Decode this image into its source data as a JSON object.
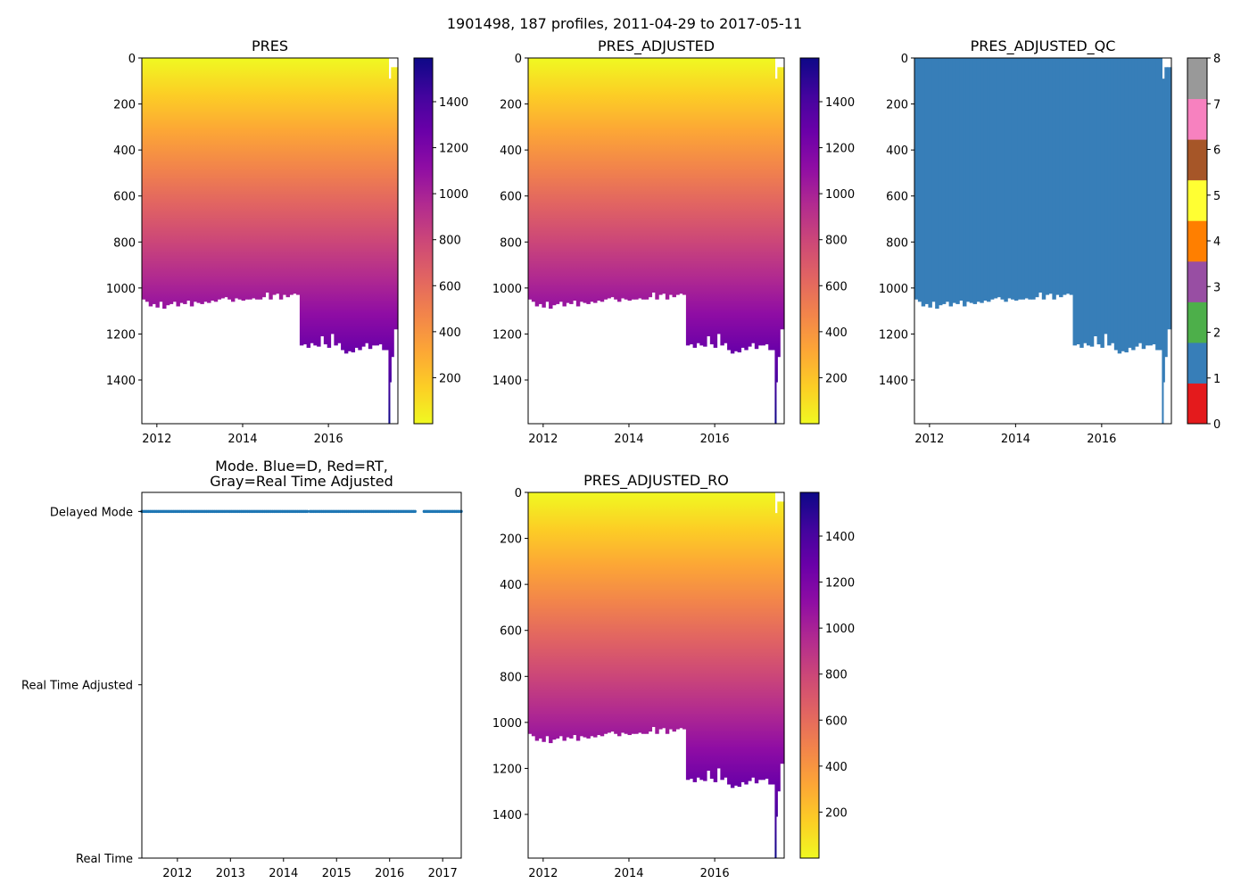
{
  "suptitle": "1901498, 187 profiles, 2011-04-29 to 2017-05-11",
  "profiles": {
    "start": 2011.65,
    "step": 0.08,
    "max_pres": [
      1050,
      1060,
      1080,
      1070,
      1085,
      1060,
      1090,
      1075,
      1070,
      1060,
      1080,
      1065,
      1070,
      1055,
      1080,
      1060,
      1065,
      1070,
      1060,
      1065,
      1055,
      1060,
      1050,
      1045,
      1040,
      1050,
      1060,
      1045,
      1050,
      1055,
      1050,
      1050,
      1045,
      1050,
      1050,
      1040,
      1020,
      1050,
      1030,
      1025,
      1050,
      1030,
      1040,
      1030,
      1025,
      1030,
      1250,
      1245,
      1260,
      1240,
      1250,
      1255,
      1210,
      1245,
      1260,
      1200,
      1250,
      1240,
      1270,
      1285,
      1275,
      1280,
      1260,
      1270,
      1255,
      1240,
      1265,
      1250,
      1250,
      1245,
      1270
    ],
    "tail": [
      [
        2017.33,
        2017.4,
        0,
        1270
      ],
      [
        2017.4,
        2017.43,
        90,
        1590
      ],
      [
        2017.43,
        2017.46,
        90,
        1410
      ],
      [
        2017.46,
        2017.52,
        40,
        1300
      ],
      [
        2017.52,
        2017.62,
        40,
        1180
      ]
    ]
  },
  "chart_data": [
    {
      "type": "heatmap",
      "title": "PRES",
      "xlim": [
        2011.65,
        2017.62
      ],
      "ylim": [
        1590,
        0
      ],
      "xticks": [
        "2012",
        "2014",
        "2016"
      ],
      "yticks": [
        "0",
        "200",
        "400",
        "600",
        "800",
        "1000",
        "1200",
        "1400"
      ],
      "colorbar": {
        "cmap": "plasma_r",
        "range": [
          0,
          1590
        ],
        "ticks": [
          "200",
          "400",
          "600",
          "800",
          "1000",
          "1200",
          "1400"
        ]
      }
    },
    {
      "type": "heatmap",
      "title": "PRES_ADJUSTED",
      "xlim": [
        2011.65,
        2017.62
      ],
      "ylim": [
        1590,
        0
      ],
      "xticks": [
        "2012",
        "2014",
        "2016"
      ],
      "yticks": [
        "0",
        "200",
        "400",
        "600",
        "800",
        "1000",
        "1200",
        "1400"
      ],
      "colorbar": {
        "cmap": "plasma_r",
        "range": [
          0,
          1590
        ],
        "ticks": [
          "200",
          "400",
          "600",
          "800",
          "1000",
          "1200",
          "1400"
        ]
      }
    },
    {
      "type": "heatmap",
      "title": "PRES_ADJUSTED_QC",
      "xlim": [
        2011.65,
        2017.62
      ],
      "ylim": [
        1590,
        0
      ],
      "qc_value": 1,
      "xticks": [
        "2012",
        "2014",
        "2016"
      ],
      "yticks": [
        "0",
        "200",
        "400",
        "600",
        "800",
        "1000",
        "1200",
        "1400"
      ],
      "colorbar": {
        "cmap": "Set1",
        "range": [
          0,
          8
        ],
        "ticks": [
          "0",
          "1",
          "2",
          "3",
          "4",
          "5",
          "6",
          "7",
          "8"
        ],
        "colors": [
          "#e41a1c",
          "#377eb8",
          "#4daf4a",
          "#984ea3",
          "#ff7f00",
          "#ffff33",
          "#a65628",
          "#f781bf",
          "#999999"
        ]
      }
    },
    {
      "type": "scatter",
      "title": [
        "Mode. Blue=D, Red=RT,",
        "Gray=Real Time Adjusted"
      ],
      "xlim": [
        2011.33,
        2017.35
      ],
      "ylim": [
        0,
        2.11
      ],
      "xticks": [
        "2012",
        "2013",
        "2014",
        "2015",
        "2016",
        "2017"
      ],
      "yticks": [
        {
          "value": 2,
          "label": "Delayed Mode"
        },
        {
          "value": 1,
          "label": "Real Time Adjusted"
        },
        {
          "value": 0,
          "label": "Real Time"
        }
      ],
      "series": [
        {
          "name": "Delayed Mode",
          "value": 2,
          "color": "#1f77b4",
          "count": 187,
          "date_segments": [
            [
              2011.33,
              2014.45
            ],
            [
              2014.5,
              2016.48
            ],
            [
              2016.65,
              2017.35
            ]
          ]
        }
      ]
    },
    {
      "type": "heatmap",
      "title": "PRES_ADJUSTED_RO",
      "xlim": [
        2011.65,
        2017.62
      ],
      "ylim": [
        1590,
        0
      ],
      "xticks": [
        "2012",
        "2014",
        "2016"
      ],
      "yticks": [
        "0",
        "200",
        "400",
        "600",
        "800",
        "1000",
        "1200",
        "1400"
      ],
      "colorbar": {
        "cmap": "plasma_r",
        "range": [
          0,
          1590
        ],
        "ticks": [
          "200",
          "400",
          "600",
          "800",
          "1000",
          "1200",
          "1400"
        ]
      }
    }
  ]
}
